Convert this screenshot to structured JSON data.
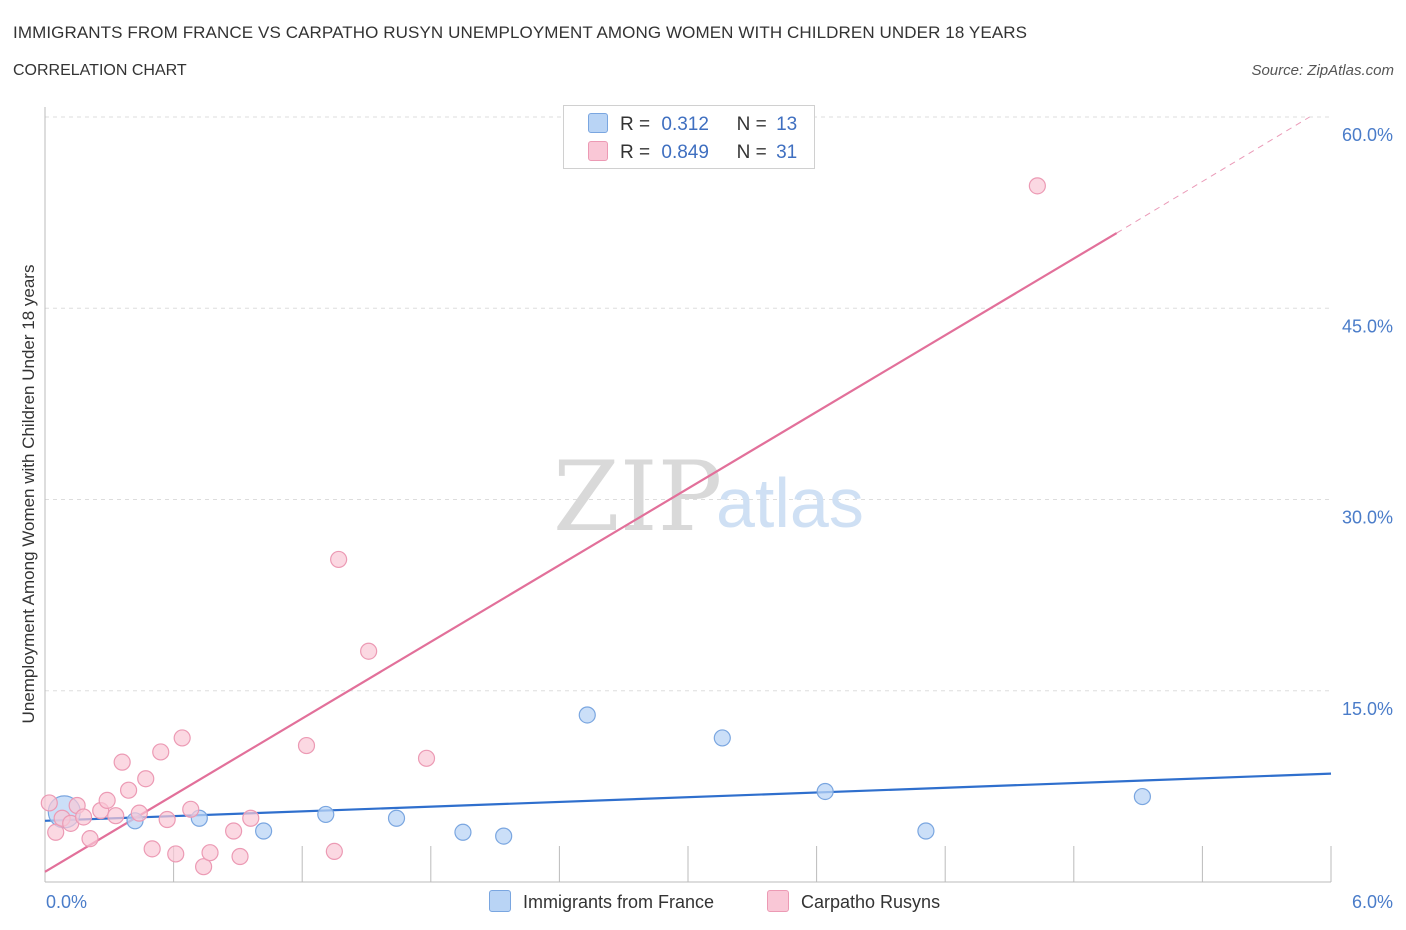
{
  "header": {
    "title": "IMMIGRANTS FROM FRANCE VS CARPATHO RUSYN UNEMPLOYMENT AMONG WOMEN WITH CHILDREN UNDER 18 YEARS",
    "subtitle": "CORRELATION CHART",
    "source": "Source: ZipAtlas.com"
  },
  "watermark": {
    "zip": "ZIP",
    "atlas": "atlas"
  },
  "legend": {
    "france": {
      "r_label": "R =",
      "r_value": "0.312",
      "n_label": "N =",
      "n_value": "13"
    },
    "rusyn": {
      "r_label": "R =",
      "r_value": "0.849",
      "n_label": "N =",
      "n_value": "31"
    }
  },
  "bottom_legend": {
    "france": "Immigrants from France",
    "rusyn": "Carpatho Rusyns"
  },
  "colors": {
    "france_fill": "#b9d4f5",
    "france_stroke": "#7aa6e0",
    "france_line": "#2f6fcd",
    "rusyn_fill": "#f9c7d6",
    "rusyn_stroke": "#ec9ab4",
    "rusyn_line": "#e2709a",
    "grid": "#dddddd",
    "axis_text": "#4a7cc9"
  },
  "chart_data": {
    "type": "scatter",
    "title": "IMMIGRANTS FROM FRANCE VS CARPATHO RUSYN UNEMPLOYMENT AMONG WOMEN WITH CHILDREN UNDER 18 YEARS",
    "xlabel": "",
    "ylabel": "Unemployment Among Women with Children Under 18 years",
    "xlim": [
      0,
      6
    ],
    "ylim": [
      0,
      60
    ],
    "x_tick_labels": [
      {
        "value": 0,
        "label": "0.0%"
      },
      {
        "value": 6,
        "label": "6.0%"
      }
    ],
    "y_tick_labels": [
      {
        "value": 15,
        "label": "15.0%"
      },
      {
        "value": 30,
        "label": "30.0%"
      },
      {
        "value": 45,
        "label": "45.0%"
      },
      {
        "value": 60,
        "label": "60.0%"
      }
    ],
    "series": [
      {
        "name": "Immigrants from France",
        "points": [
          [
            0.09,
            5.5
          ],
          [
            0.42,
            4.8
          ],
          [
            0.72,
            5.0
          ],
          [
            1.02,
            4.0
          ],
          [
            1.31,
            5.3
          ],
          [
            1.64,
            5.0
          ],
          [
            1.95,
            3.9
          ],
          [
            2.14,
            3.6
          ],
          [
            2.53,
            13.1
          ],
          [
            3.16,
            11.3
          ],
          [
            3.64,
            7.1
          ],
          [
            4.11,
            4.0
          ],
          [
            5.12,
            6.7
          ]
        ],
        "trend": {
          "x0": 0,
          "y0": 4.8,
          "x1": 6,
          "y1": 8.5
        }
      },
      {
        "name": "Carpatho Rusyns",
        "points": [
          [
            0.02,
            6.2
          ],
          [
            0.05,
            3.9
          ],
          [
            0.08,
            5.0
          ],
          [
            0.12,
            4.6
          ],
          [
            0.15,
            6.0
          ],
          [
            0.18,
            5.1
          ],
          [
            0.21,
            3.4
          ],
          [
            0.26,
            5.6
          ],
          [
            0.29,
            6.4
          ],
          [
            0.33,
            5.2
          ],
          [
            0.36,
            9.4
          ],
          [
            0.39,
            7.2
          ],
          [
            0.44,
            5.4
          ],
          [
            0.47,
            8.1
          ],
          [
            0.5,
            2.6
          ],
          [
            0.54,
            10.2
          ],
          [
            0.57,
            4.9
          ],
          [
            0.61,
            2.2
          ],
          [
            0.64,
            11.3
          ],
          [
            0.68,
            5.7
          ],
          [
            0.74,
            1.2
          ],
          [
            0.77,
            2.3
          ],
          [
            0.88,
            4.0
          ],
          [
            0.91,
            2.0
          ],
          [
            0.96,
            5.0
          ],
          [
            1.22,
            10.7
          ],
          [
            1.35,
            2.4
          ],
          [
            1.37,
            25.3
          ],
          [
            1.51,
            18.1
          ],
          [
            1.78,
            9.7
          ],
          [
            4.63,
            54.6
          ]
        ],
        "trend": {
          "x0": 0,
          "y0": 0.8,
          "x1": 5.0,
          "y1": 50.9
        },
        "trend_dashed": {
          "x0": 5.0,
          "y0": 50.9,
          "x1": 5.9,
          "y1": 60.0
        }
      }
    ]
  }
}
